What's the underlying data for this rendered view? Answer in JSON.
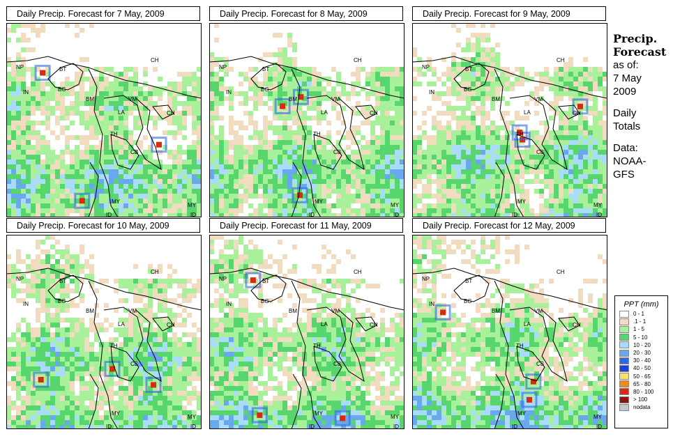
{
  "panels": [
    {
      "title": "Daily Precip. Forecast for  7 May, 2009"
    },
    {
      "title": "Daily Precip. Forecast for  8 May, 2009"
    },
    {
      "title": "Daily Precip. Forecast for  9 May, 2009"
    },
    {
      "title": "Daily Precip. Forecast for  10 May, 2009"
    },
    {
      "title": "Daily Precip. Forecast for  11 May, 2009"
    },
    {
      "title": "Daily Precip. Forecast for  12 May, 2009"
    }
  ],
  "country_labels": [
    "NP",
    "BT",
    "BG",
    "IN",
    "CH",
    "BM",
    "VM",
    "LA",
    "CH",
    "TH",
    "CB",
    "MY",
    "MY",
    "ID",
    "ID"
  ],
  "side": {
    "title_line1": "Precip.",
    "title_line2": "Forecast",
    "asof": "as of:",
    "date_line1": "7 May",
    "date_line2": "2009",
    "daily_line1": "Daily",
    "daily_line2": "Totals",
    "data_line1": "Data:",
    "data_line2": "NOAA-",
    "data_line3": "GFS"
  },
  "legend": {
    "title": "PPT (mm)",
    "items": [
      {
        "label": "0 - 1",
        "color": "#ffffff"
      },
      {
        "label": ".1 - 1",
        "color": "#f1dcc0"
      },
      {
        "label": "1 - 5",
        "color": "#a8f09a"
      },
      {
        "label": "5 - 10",
        "color": "#56d66c"
      },
      {
        "label": "10 - 20",
        "color": "#a8dcf8"
      },
      {
        "label": "20 - 30",
        "color": "#6aa8ee"
      },
      {
        "label": "30 - 40",
        "color": "#2f6be0"
      },
      {
        "label": "40 - 50",
        "color": "#1f3fd8"
      },
      {
        "label": "50 - 65",
        "color": "#f6e26a"
      },
      {
        "label": "65 - 80",
        "color": "#f28a1c"
      },
      {
        "label": "80 - 100",
        "color": "#d62a12"
      },
      {
        "label": "> 100",
        "color": "#8c1410"
      },
      {
        "label": "nodata",
        "color": "#c6c6c6"
      }
    ]
  }
}
